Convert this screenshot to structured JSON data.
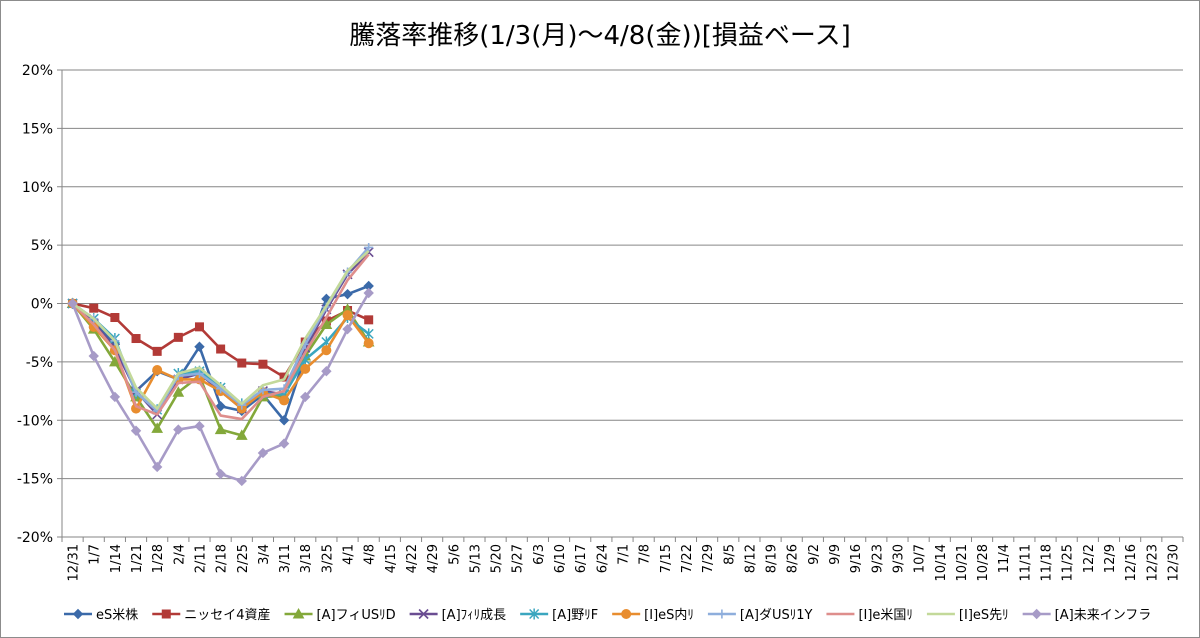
{
  "chart_data": {
    "type": "line",
    "title": "騰落率推移(1/3(月)～4/8(金))[損益ベース]",
    "xlabel": "",
    "ylabel": "",
    "ylim": [
      -20,
      20
    ],
    "y_ticks": [
      "20%",
      "15%",
      "10%",
      "5%",
      "0%",
      "-5%",
      "-10%",
      "-15%",
      "-20%"
    ],
    "grid": "horizontal",
    "legend_position": "bottom",
    "x_labels": [
      "12/31",
      "1/7",
      "1/14",
      "1/21",
      "1/28",
      "2/4",
      "2/11",
      "2/18",
      "2/25",
      "3/4",
      "3/11",
      "3/18",
      "3/25",
      "4/1",
      "4/8",
      "4/15",
      "4/22",
      "4/29",
      "5/6",
      "5/13",
      "5/20",
      "5/27",
      "6/3",
      "6/10",
      "6/17",
      "6/24",
      "7/1",
      "7/8",
      "7/15",
      "7/22",
      "7/29",
      "8/5",
      "8/12",
      "8/19",
      "8/26",
      "9/2",
      "9/9",
      "9/16",
      "9/23",
      "9/30",
      "10/7",
      "10/14",
      "10/21",
      "10/28",
      "11/4",
      "11/11",
      "11/18",
      "11/25",
      "12/2",
      "12/9",
      "12/16",
      "12/23",
      "12/30"
    ],
    "series": [
      {
        "name": "eS米株",
        "color": "#3b6aa9",
        "marker": "diamond",
        "values": [
          0,
          -1.5,
          -3.5,
          -7.5,
          -5.8,
          -6.5,
          -3.7,
          -8.8,
          -9.2,
          -7.8,
          -10,
          -4.5,
          0.4,
          0.8,
          1.5
        ]
      },
      {
        "name": "ニッセイ4資産",
        "color": "#b23a37",
        "marker": "square",
        "values": [
          0,
          -0.4,
          -1.2,
          -3,
          -4.1,
          -2.9,
          -2,
          -3.9,
          -5.1,
          -5.2,
          -6.3,
          -3.3,
          -1.5,
          -0.6,
          -1.4
        ]
      },
      {
        "name": "[A]フィUSﾘD",
        "color": "#83a83a",
        "marker": "triangle",
        "values": [
          0,
          -2.2,
          -5,
          -8,
          -10.7,
          -7.6,
          -6.2,
          -10.8,
          -11.3,
          -8,
          -7.9,
          -4.5,
          -1.8,
          -0.5,
          -3.3
        ]
      },
      {
        "name": "[A]ﾌｨﾘ成長",
        "color": "#6a4d92",
        "marker": "x",
        "values": [
          0,
          -1.7,
          -3.8,
          -7.5,
          -9.5,
          -6.5,
          -6,
          -7.5,
          -9,
          -7.5,
          -7.8,
          -3.8,
          -0.5,
          2.5,
          4.4
        ]
      },
      {
        "name": "[A]野ﾘF",
        "color": "#3aa6bf",
        "marker": "star",
        "values": [
          0,
          -1.3,
          -3,
          -7.7,
          -9.1,
          -6,
          -5.8,
          -7.2,
          -8.6,
          -7.7,
          -7.8,
          -4.8,
          -3.3,
          -1.2,
          -2.6
        ]
      },
      {
        "name": "[I]eS内ﾘ",
        "color": "#e88d2f",
        "marker": "circle",
        "values": [
          0,
          -2,
          -4,
          -9,
          -5.7,
          -6.5,
          -6.5,
          -7.5,
          -9,
          -7.6,
          -8.3,
          -5.6,
          -4,
          -1,
          -3.4
        ]
      },
      {
        "name": "[A]ダUSﾘ1Y",
        "color": "#8eaedc",
        "marker": "plus",
        "values": [
          0,
          -1.3,
          -3.2,
          -7.6,
          -9.2,
          -6.2,
          -6,
          -7.3,
          -8.7,
          -7.4,
          -7.3,
          -3.5,
          -0.3,
          2.7,
          4.8
        ]
      },
      {
        "name": "[I]e米国ﾘ",
        "color": "#de8e8c",
        "marker": "line",
        "values": [
          0,
          -1.8,
          -4,
          -8.8,
          -9.5,
          -6.8,
          -6.7,
          -9.6,
          -9.9,
          -8,
          -7.5,
          -4.2,
          -1.2,
          2,
          4.2
        ]
      },
      {
        "name": "[I]eS先ﾘ",
        "color": "#c3d99a",
        "marker": "line",
        "values": [
          0,
          -1.3,
          -3.2,
          -7.2,
          -9,
          -6,
          -5.5,
          -7,
          -8.6,
          -7,
          -6.5,
          -3,
          -0.2,
          2.8,
          4.5
        ]
      },
      {
        "name": "[A]未来インフラ",
        "color": "#a79bc7",
        "marker": "diamond",
        "values": [
          0,
          -4.5,
          -8,
          -10.9,
          -14,
          -10.8,
          -10.5,
          -14.6,
          -15.2,
          -12.8,
          -12,
          -8,
          -5.8,
          -2.2,
          0.9
        ]
      }
    ]
  }
}
